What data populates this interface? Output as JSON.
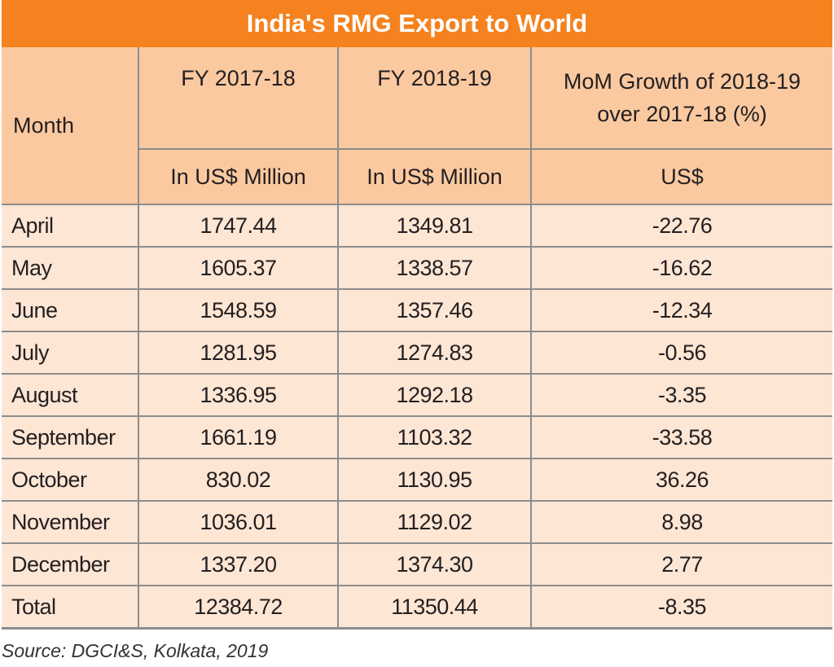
{
  "chart_data": {
    "type": "table",
    "title": "India's RMG Export to World",
    "columns": [
      {
        "header": "Month",
        "subheader": ""
      },
      {
        "header": "FY 2017-18",
        "subheader": "In US$ Million"
      },
      {
        "header": "FY 2018-19",
        "subheader": "In US$ Million"
      },
      {
        "header": "MoM Growth of 2018-19 over 2017-18 (%)",
        "header_line1": "MoM Growth of 2018-19",
        "header_line2": "over 2017-18 (%)",
        "subheader": "US$"
      }
    ],
    "rows": [
      [
        "April",
        "1747.44",
        "1349.81",
        "-22.76"
      ],
      [
        "May",
        "1605.37",
        "1338.57",
        "-16.62"
      ],
      [
        "June",
        "1548.59",
        "1357.46",
        "-12.34"
      ],
      [
        "July",
        "1281.95",
        "1274.83",
        "-0.56"
      ],
      [
        "August",
        "1336.95",
        "1292.18",
        "-3.35"
      ],
      [
        "September",
        "1661.19",
        "1103.32",
        "-33.58"
      ],
      [
        "October",
        "830.02",
        "1130.95",
        "36.26"
      ],
      [
        "November",
        "1036.01",
        "1129.02",
        "8.98"
      ],
      [
        "December",
        "1337.20",
        "1374.30",
        "2.77"
      ],
      [
        "Total",
        "12384.72",
        "11350.44",
        "-8.35"
      ]
    ],
    "source": "Source: DGCI&S, Kolkata, 2019"
  },
  "colors": {
    "title_bg": "#f5821f",
    "header_bg": "#fbc9a0",
    "body_bg": "#fde6d4",
    "grid": "#8c8c8c"
  }
}
